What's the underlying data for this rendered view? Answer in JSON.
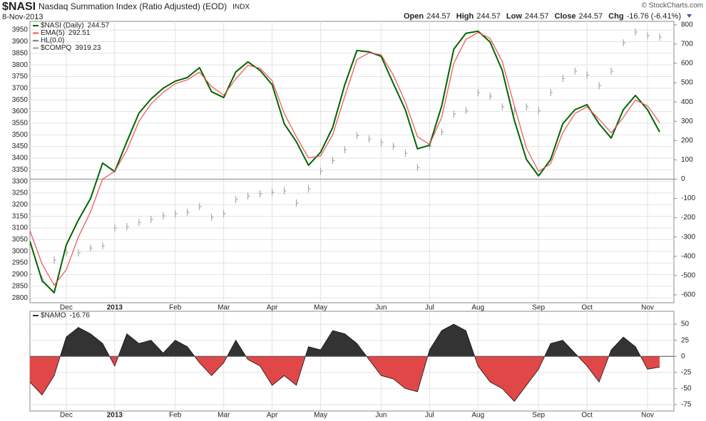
{
  "header": {
    "symbol": "$NASI",
    "name": "Nasdaq Summation Index (Ratio Adjusted) (EOD)",
    "exchange": "INDX",
    "date": "8-Nov-2013",
    "copyright": "© StockCharts.com",
    "quote": [
      {
        "label": "Open",
        "value": "244.57"
      },
      {
        "label": "High",
        "value": "244.57"
      },
      {
        "label": "Low",
        "value": "244.57"
      },
      {
        "label": "Close",
        "value": "244.57"
      },
      {
        "label": "Chg",
        "value": "-16.76 (-6.41%)"
      }
    ]
  },
  "chart_data": [
    {
      "type": "line",
      "categories": [
        null,
        null,
        null,
        "Dec",
        null,
        null,
        null,
        "2013",
        null,
        null,
        null,
        null,
        "Feb",
        null,
        null,
        null,
        "Mar",
        null,
        null,
        null,
        "Apr",
        null,
        null,
        null,
        "May",
        null,
        null,
        null,
        null,
        "Jun",
        null,
        null,
        null,
        "Jul",
        null,
        null,
        null,
        "Aug",
        null,
        null,
        null,
        null,
        "Sep",
        null,
        null,
        null,
        "Oct",
        null,
        null,
        null,
        null,
        "Nov",
        null
      ],
      "ylim": [
        2779,
        3987
      ],
      "yticks": [
        2800,
        2850,
        2900,
        2950,
        3000,
        3050,
        3100,
        3150,
        3200,
        3250,
        3300,
        3350,
        3400,
        3450,
        3500,
        3550,
        3600,
        3650,
        3700,
        3750,
        3800,
        3850,
        3900,
        3950
      ],
      "y2lim": [
        -641,
        818
      ],
      "y2ticks": [
        -600,
        -500,
        -400,
        -300,
        -200,
        -100,
        0,
        100,
        200,
        300,
        400,
        500,
        600,
        700,
        800
      ],
      "grid": true,
      "hline": {
        "name": "HL(0.0)",
        "value": 0,
        "axis": "y2",
        "color": "#888888"
      },
      "series": [
        {
          "name": "$COMPQ",
          "last": 3919.23,
          "color": "#999999",
          "mark": "tick",
          "values": [
            2901,
            2880,
            2962,
            2993,
            2993,
            3014,
            3023,
            3100,
            3106,
            3124,
            3137,
            3152,
            3161,
            3167,
            3192,
            3146,
            3161,
            3222,
            3237,
            3247,
            3253,
            3259,
            3207,
            3268,
            3344,
            3390,
            3436,
            3497,
            3482,
            3467,
            3451,
            3421,
            3360,
            3451,
            3513,
            3589,
            3604,
            3681,
            3666,
            3620,
            3604,
            3620,
            3604,
            3681,
            3742,
            3773,
            3757,
            3711,
            3773,
            3895,
            3941,
            3926,
            3919.23
          ]
        },
        {
          "name": "$NASI (Daily)",
          "last": 244.57,
          "axis": "y2",
          "color": "#006400",
          "width": 2,
          "values": [
            -323,
            -526,
            -589,
            -341,
            -212,
            -101,
            83,
            39,
            194,
            342,
            416,
            471,
            508,
            527,
            578,
            453,
            423,
            556,
            608,
            564,
            490,
            287,
            194,
            72,
            139,
            268,
            490,
            667,
            660,
            637,
            497,
            360,
            157,
            176,
            379,
            674,
            756,
            767,
            711,
            564,
            305,
            102,
            17,
            102,
            287,
            360,
            386,
            287,
            213,
            360,
            434,
            360,
            244.57
          ]
        },
        {
          "name": "EMA(5)",
          "last": 292.51,
          "axis": "y2",
          "color": "#f05050",
          "width": 1.2,
          "values": [
            -268,
            -440,
            -550,
            -470,
            -300,
            -170,
            0,
            40,
            150,
            300,
            390,
            450,
            495,
            515,
            555,
            480,
            435,
            520,
            590,
            575,
            510,
            340,
            220,
            110,
            120,
            230,
            430,
            620,
            655,
            645,
            540,
            400,
            220,
            180,
            320,
            600,
            725,
            760,
            730,
            610,
            380,
            160,
            40,
            80,
            240,
            340,
            375,
            310,
            240,
            320,
            410,
            380,
            292.51
          ]
        }
      ]
    },
    {
      "type": "area",
      "categories": [
        null,
        null,
        null,
        "Dec",
        null,
        null,
        null,
        "2013",
        null,
        null,
        null,
        null,
        "Feb",
        null,
        null,
        null,
        "Mar",
        null,
        null,
        null,
        "Apr",
        null,
        null,
        null,
        "May",
        null,
        null,
        null,
        null,
        "Jun",
        null,
        null,
        null,
        "Jul",
        null,
        null,
        null,
        "Aug",
        null,
        null,
        null,
        null,
        "Sep",
        null,
        null,
        null,
        "Oct",
        null,
        null,
        null,
        null,
        "Nov",
        null
      ],
      "ylim": [
        -85,
        70
      ],
      "yticks": [
        -75,
        -50,
        -25,
        0,
        25,
        50
      ],
      "grid": true,
      "series": [
        {
          "name": "$NAMO",
          "last": -16.76,
          "color": "#333333",
          "negative_color": "#e04848",
          "values": [
            -40,
            -60,
            -30,
            30,
            45,
            35,
            20,
            -15,
            35,
            20,
            25,
            5,
            25,
            15,
            -10,
            -30,
            -10,
            25,
            -5,
            -15,
            -45,
            -30,
            -45,
            15,
            10,
            40,
            35,
            20,
            -5,
            -30,
            -35,
            -50,
            -55,
            10,
            40,
            50,
            40,
            -15,
            -40,
            -50,
            -70,
            -45,
            -20,
            20,
            25,
            5,
            -15,
            -40,
            10,
            30,
            15,
            -20,
            -16.76
          ]
        }
      ]
    }
  ]
}
